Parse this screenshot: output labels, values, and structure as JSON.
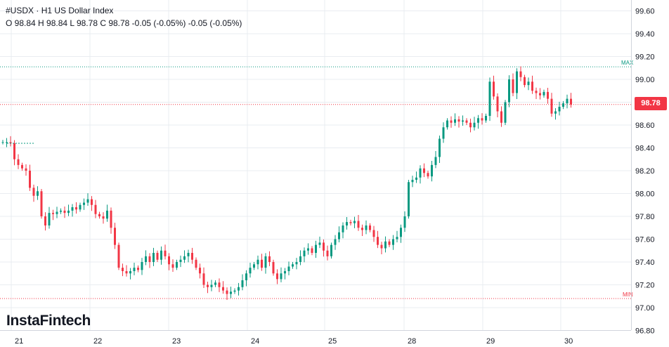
{
  "header": {
    "symbol": "#USDX",
    "separator": "·",
    "title": "H1 US Dollar Index",
    "ohlc_text": "O 98.84 H 98.84 L 98.78 C 98.78 -0.05 (-0.05%) -0.05 (-0.05%)"
  },
  "logo": "InstaFintech",
  "price_tag": "98.78",
  "colors": {
    "up": "#089981",
    "down": "#f23645",
    "max_line": "#089981",
    "min_line": "#f23645",
    "grid": "#e9ecf1"
  },
  "chart_data": {
    "type": "candlestick",
    "title": "H1 US Dollar Index",
    "symbol": "#USDX",
    "ylim": [
      96.8,
      99.7
    ],
    "yticks": [
      "99.60",
      "99.40",
      "99.20",
      "99.00",
      "98.80",
      "98.60",
      "98.40",
      "98.20",
      "98.00",
      "97.80",
      "97.60",
      "97.40",
      "97.20",
      "97.00",
      "96.80"
    ],
    "x_labels": [
      "21",
      "22",
      "23",
      "24",
      "25",
      "28",
      "29",
      "30"
    ],
    "grid": true,
    "last_price": 98.78,
    "max": {
      "label": "MAX",
      "value": 99.11
    },
    "min": {
      "label": "MIN",
      "value": 97.08
    },
    "close": [
      98.45,
      98.45,
      98.44,
      98.3,
      98.25,
      98.22,
      98.2,
      98.05,
      97.98,
      98.02,
      97.8,
      97.72,
      97.83,
      97.82,
      97.84,
      97.85,
      97.83,
      97.85,
      97.88,
      97.86,
      97.9,
      97.92,
      97.95,
      97.9,
      97.82,
      97.8,
      97.78,
      97.85,
      97.7,
      97.55,
      97.35,
      97.32,
      97.3,
      97.32,
      97.35,
      97.33,
      97.4,
      97.45,
      97.4,
      97.48,
      97.42,
      97.5,
      97.45,
      97.38,
      97.35,
      97.4,
      97.42,
      97.45,
      97.48,
      97.42,
      97.35,
      97.3,
      97.2,
      97.18,
      97.2,
      97.22,
      97.18,
      97.15,
      97.12,
      97.14,
      97.15,
      97.18,
      97.24,
      97.3,
      97.35,
      97.38,
      97.42,
      97.35,
      97.45,
      97.4,
      97.3,
      97.25,
      97.3,
      97.32,
      97.36,
      97.38,
      97.4,
      97.45,
      97.5,
      97.52,
      97.48,
      97.55,
      97.57,
      97.5,
      97.45,
      97.55,
      97.6,
      97.66,
      97.72,
      97.75,
      97.74,
      97.76,
      97.7,
      97.68,
      97.72,
      97.68,
      97.62,
      97.55,
      97.52,
      97.58,
      97.55,
      97.6,
      97.62,
      97.7,
      97.8,
      98.1,
      98.12,
      98.14,
      98.22,
      98.18,
      98.15,
      98.25,
      98.32,
      98.48,
      98.58,
      98.64,
      98.62,
      98.65,
      98.63,
      98.64,
      98.62,
      98.58,
      98.62,
      98.66,
      98.64,
      98.68,
      98.98,
      98.85,
      98.72,
      98.62,
      98.8,
      99.0,
      98.88,
      99.07,
      99.02,
      98.95,
      98.98,
      98.9,
      98.88,
      98.86,
      98.89,
      98.83,
      98.7,
      98.72,
      98.76,
      98.79,
      98.83,
      98.78
    ]
  }
}
